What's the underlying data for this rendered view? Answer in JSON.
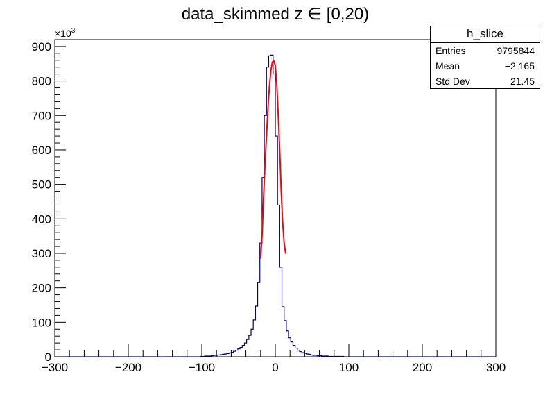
{
  "chart_data": {
    "type": "histogram",
    "title": "data_skimmed z  ∈ [0,20)",
    "xlabel": "",
    "ylabel": "",
    "y_multiplier_label": "×10",
    "y_multiplier_exp": "3",
    "xlim": [
      -300,
      300
    ],
    "ylim": [
      0,
      920
    ],
    "x_ticks": [
      -300,
      -200,
      -100,
      0,
      100,
      200,
      300
    ],
    "x_tick_labels": [
      "−300",
      "−200",
      "−100",
      "0",
      "100",
      "200",
      "300"
    ],
    "y_ticks": [
      0,
      100,
      200,
      300,
      400,
      500,
      600,
      700,
      800,
      900
    ],
    "y_tick_labels": [
      "0",
      "100",
      "200",
      "300",
      "400",
      "500",
      "600",
      "700",
      "800",
      "900"
    ],
    "grid": false,
    "series": [
      {
        "style": "histogram-step",
        "color": "#000080",
        "bin_width": 3,
        "bin_centers": [
          -100.5,
          -97.5,
          -94.5,
          -91.5,
          -88.5,
          -85.5,
          -82.5,
          -79.5,
          -76.5,
          -73.5,
          -70.5,
          -67.5,
          -64.5,
          -61.5,
          -58.5,
          -55.5,
          -52.5,
          -49.5,
          -46.5,
          -43.5,
          -40.5,
          -37.5,
          -34.5,
          -31.5,
          -28.5,
          -25.5,
          -22.5,
          -19.5,
          -16.5,
          -13.5,
          -10.5,
          -7.5,
          -4.5,
          -1.5,
          1.5,
          4.5,
          7.5,
          10.5,
          13.5,
          16.5,
          19.5,
          22.5,
          25.5,
          28.5,
          31.5,
          34.5,
          37.5,
          40.5,
          43.5,
          46.5,
          49.5,
          52.5,
          55.5,
          58.5,
          61.5,
          64.5,
          67.5,
          70.5,
          73.5,
          76.5,
          79.5,
          82.5,
          85.5,
          88.5,
          91.5,
          94.5,
          97.5,
          100.5,
          103.5
        ],
        "values": [
          1,
          1,
          2,
          2,
          2,
          3,
          4,
          4,
          5,
          6,
          7,
          8,
          9,
          11,
          13,
          16,
          19,
          23,
          27,
          33,
          40,
          50,
          62,
          80,
          107,
          147,
          215,
          330,
          520,
          700,
          840,
          873,
          875,
          820,
          640,
          440,
          260,
          145,
          105,
          75,
          55,
          43,
          33,
          25,
          19,
          15,
          12,
          10,
          8,
          7,
          5,
          4,
          4,
          3,
          3,
          2,
          2,
          2,
          1,
          1,
          1,
          1,
          1,
          1,
          1,
          0,
          0,
          0,
          0
        ]
      },
      {
        "style": "fit-curve",
        "color": "#ff0000",
        "x": [
          -20,
          -18,
          -16,
          -14,
          -12,
          -10,
          -8,
          -6,
          -4,
          -2,
          0,
          2,
          4,
          6,
          8,
          10,
          12,
          14
        ],
        "y": [
          286,
          352,
          460,
          560,
          640,
          720,
          785,
          830,
          855,
          858,
          845,
          790,
          700,
          600,
          480,
          390,
          330,
          300
        ]
      }
    ],
    "stats_box": {
      "title": "h_slice",
      "rows": [
        {
          "label": "Entries",
          "value": "9795844"
        },
        {
          "label": "Mean",
          "value": "−2.165"
        },
        {
          "label": "Std Dev",
          "value": "21.45"
        }
      ]
    }
  }
}
